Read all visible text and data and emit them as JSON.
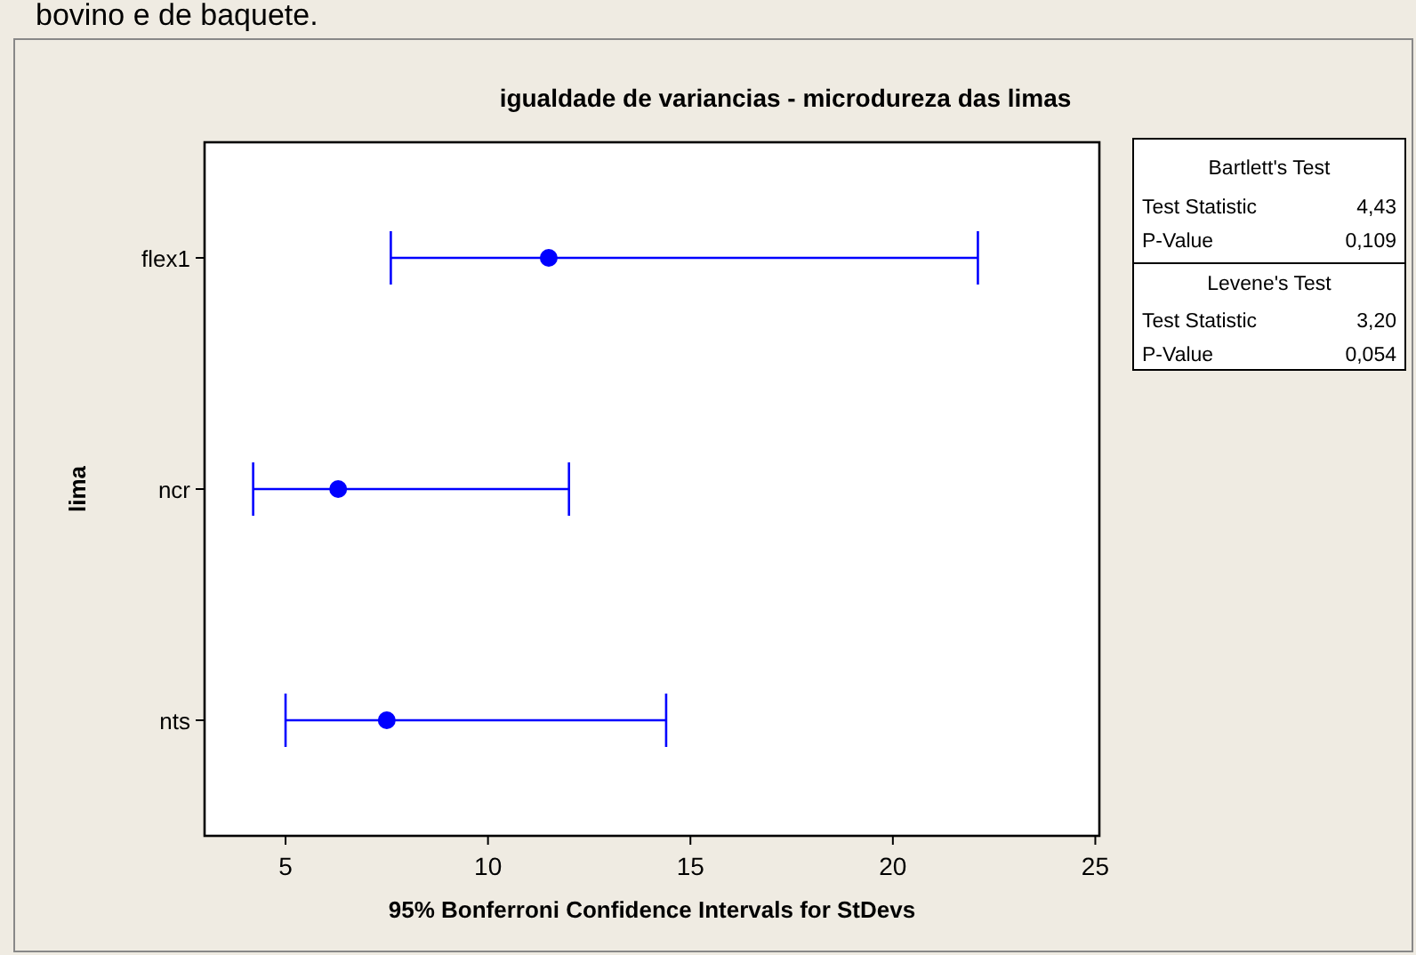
{
  "chart_data": {
    "type": "scatter",
    "orientation": "horizontal",
    "title": "igualdade de variancias - microdureza das limas",
    "xlabel": "95% Bonferroni Confidence Intervals for StDevs",
    "ylabel": "lima",
    "categories": [
      "flex1",
      "ncr",
      "nts"
    ],
    "values": [
      11.5,
      6.3,
      7.5
    ],
    "errors": [
      [
        7.6,
        22.1
      ],
      [
        4.2,
        12.0
      ],
      [
        5.0,
        14.4
      ]
    ],
    "color": "#0000ff",
    "marker": "circle",
    "xlim": [
      3,
      25.1
    ],
    "xticks": [
      5,
      10,
      15,
      20,
      25
    ],
    "annotations": [
      "bovino e de baquete.",
      "Bartlett's Test",
      "Test Statistic",
      "4,43",
      "P-Value",
      "0,109",
      "Levene's Test",
      "Test Statistic",
      "3,20",
      "P-Value",
      "0,054"
    ]
  }
}
